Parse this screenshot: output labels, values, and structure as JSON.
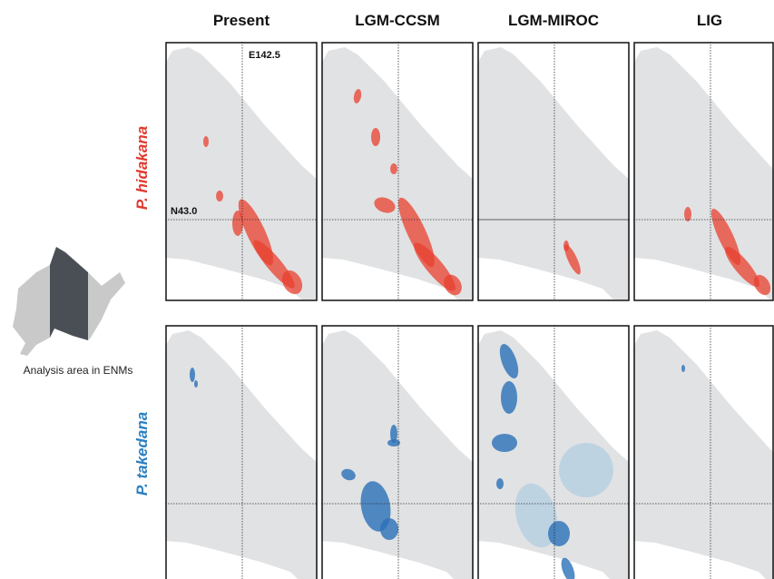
{
  "columns": [
    "Present",
    "LGM-CCSM",
    "LGM-MIROC",
    "LIG"
  ],
  "rows": [
    "P. hidakana",
    "P. takedana"
  ],
  "annotations": {
    "longitude": "E142.5",
    "latitude": "N43.0"
  },
  "inset": {
    "caption": "Analysis area in ENMs"
  }
}
